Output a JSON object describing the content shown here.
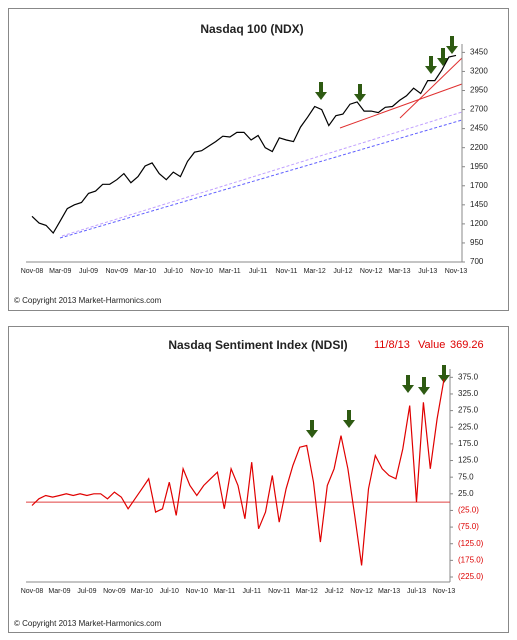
{
  "chart_data": [
    {
      "type": "line",
      "title": "Nasdaq 100 (NDX)",
      "source": "© Copyright 2013 Market-Harmonics.com",
      "categories": [
        "Nov-08",
        null,
        null,
        null,
        "Mar-09",
        null,
        null,
        null,
        "Jul-09",
        null,
        null,
        null,
        "Nov-09",
        null,
        null,
        null,
        "Mar-10",
        null,
        null,
        null,
        "Jul-10",
        null,
        null,
        null,
        "Nov-10",
        null,
        null,
        null,
        "Mar-11",
        null,
        null,
        null,
        "Jul-11",
        null,
        null,
        null,
        "Nov-11",
        null,
        null,
        null,
        "Mar-12",
        null,
        null,
        null,
        "Jul-12",
        null,
        null,
        null,
        "Nov-12",
        null,
        null,
        null,
        "Mar-13",
        null,
        null,
        null,
        "Jul-13",
        null,
        null,
        null,
        "Nov-13"
      ],
      "series": [
        {
          "color": "#000000",
          "values": [
            1300,
            1210,
            1180,
            1080,
            1240,
            1400,
            1450,
            1480,
            1600,
            1630,
            1720,
            1720,
            1780,
            1860,
            1740,
            1820,
            1960,
            2000,
            1860,
            1780,
            1880,
            1820,
            2020,
            2140,
            2160,
            2220,
            2280,
            2350,
            2340,
            2400,
            2400,
            2300,
            2360,
            2200,
            2150,
            2330,
            2300,
            2280,
            2470,
            2600,
            2740,
            2700,
            2490,
            2620,
            2640,
            2770,
            2800,
            2680,
            2680,
            2660,
            2730,
            2740,
            2820,
            2880,
            2980,
            2910,
            3080,
            3080,
            3220,
            3390,
            3410
          ]
        }
      ],
      "ylim": [
        700,
        3560
      ],
      "yticks": [
        700,
        950,
        1200,
        1450,
        1700,
        1950,
        2200,
        2450,
        2700,
        2950,
        3200,
        3450
      ]
    },
    {
      "type": "line",
      "title": "Nasdaq  Sentiment Index (NDSI)",
      "source": "© Copyright 2013 Market-Harmonics.com",
      "date": "11/8/13",
      "value_name": "Value",
      "value_text": "369.26",
      "categories": [
        "Nov-08",
        null,
        null,
        null,
        "Mar-09",
        null,
        null,
        null,
        "Jul-09",
        null,
        null,
        null,
        "Nov-09",
        null,
        null,
        null,
        "Mar-10",
        null,
        null,
        null,
        "Jul-10",
        null,
        null,
        null,
        "Nov-10",
        null,
        null,
        null,
        "Mar-11",
        null,
        null,
        null,
        "Jul-11",
        null,
        null,
        null,
        "Nov-11",
        null,
        null,
        null,
        "Mar-12",
        null,
        null,
        null,
        "Jul-12",
        null,
        null,
        null,
        "Nov-12",
        null,
        null,
        null,
        "Mar-13",
        null,
        null,
        null,
        "Jul-13",
        null,
        null,
        null,
        "Nov-13"
      ],
      "series": [
        {
          "color": "#e00000",
          "values": [
            -10,
            10,
            20,
            15,
            20,
            25,
            20,
            25,
            20,
            25,
            25,
            10,
            30,
            15,
            -20,
            10,
            40,
            70,
            -30,
            -20,
            60,
            -40,
            100,
            50,
            20,
            50,
            70,
            90,
            -20,
            100,
            50,
            -50,
            120,
            -80,
            -30,
            80,
            -60,
            40,
            110,
            165,
            170,
            60,
            -120,
            50,
            100,
            200,
            100,
            -40,
            -190,
            40,
            140,
            100,
            80,
            70,
            160,
            290,
            0,
            300,
            100,
            250,
            369.26
          ]
        }
      ],
      "ylim": [
        -240,
        400
      ],
      "yticks": [
        {
          "value": -225,
          "label": "(225.0)"
        },
        {
          "value": -175,
          "label": "(175.0)"
        },
        {
          "value": -125,
          "label": "(125.0)"
        },
        {
          "value": -75,
          "label": "(75.0)"
        },
        {
          "value": -25,
          "label": "(25.0)"
        },
        {
          "value": 25,
          "label": "25.0"
        },
        {
          "value": 75,
          "label": "75.0"
        },
        {
          "value": 125,
          "label": "125.0"
        },
        {
          "value": 175,
          "label": "175.0"
        },
        {
          "value": 225,
          "label": "225.0"
        },
        {
          "value": 275,
          "label": "275.0"
        },
        {
          "value": 325,
          "label": "325.0"
        },
        {
          "value": 375,
          "label": "375.0"
        }
      ]
    }
  ]
}
